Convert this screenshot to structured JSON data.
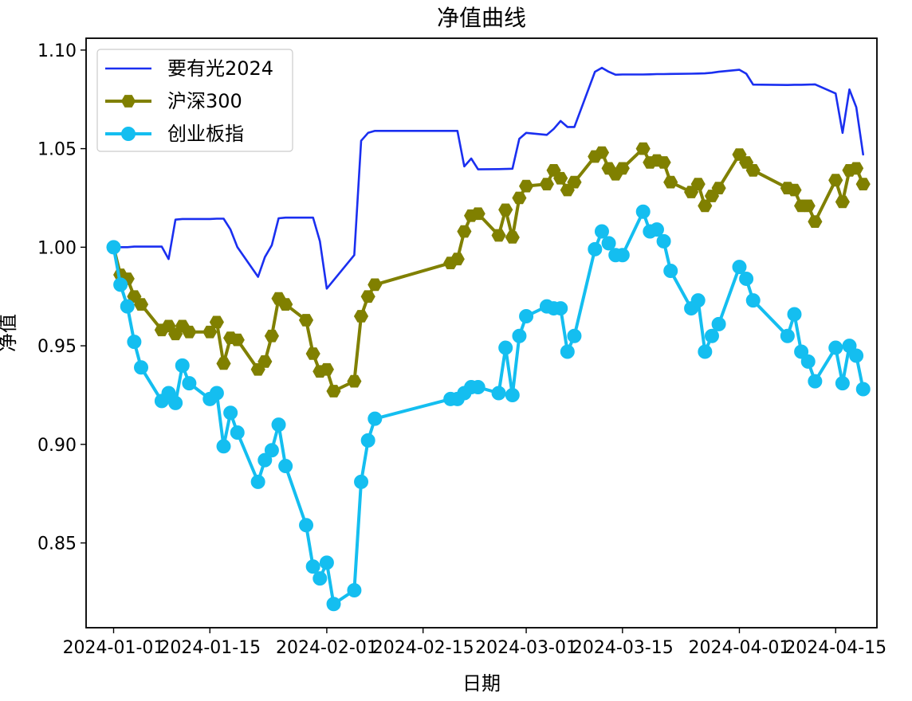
{
  "chart_data": {
    "type": "line",
    "title": "净值曲线",
    "xlabel": "日期",
    "ylabel": "净值",
    "xlim": [
      "2023-12-28",
      "2024-04-21"
    ],
    "ylim": [
      0.807,
      1.106
    ],
    "x_ticks": [
      "2024-01-01",
      "2024-01-15",
      "2024-02-01",
      "2024-02-15",
      "2024-03-01",
      "2024-03-15",
      "2024-04-01",
      "2024-04-15"
    ],
    "y_ticks": [
      0.85,
      0.9,
      0.95,
      1.0,
      1.05,
      1.1
    ],
    "y_tick_labels": [
      "0.85",
      "0.90",
      "0.95",
      "1.00",
      "1.05",
      "1.10"
    ],
    "legend_position": "top-left",
    "series": [
      {
        "name": "要有光2024",
        "color": "#1a2ff0",
        "marker": "none",
        "points": [
          [
            "2024-01-01",
            1.0
          ],
          [
            "2024-01-02",
            1.0
          ],
          [
            "2024-01-03",
            1.0
          ],
          [
            "2024-01-04",
            1.0003
          ],
          [
            "2024-01-05",
            1.0003
          ],
          [
            "2024-01-08",
            1.0003
          ],
          [
            "2024-01-09",
            0.994
          ],
          [
            "2024-01-10",
            1.014
          ],
          [
            "2024-01-11",
            1.0143
          ],
          [
            "2024-01-12",
            1.0143
          ],
          [
            "2024-01-15",
            1.0143
          ],
          [
            "2024-01-16",
            1.0145
          ],
          [
            "2024-01-17",
            1.0145
          ],
          [
            "2024-01-18",
            1.009
          ],
          [
            "2024-01-19",
            1.0
          ],
          [
            "2024-01-22",
            0.985
          ],
          [
            "2024-01-23",
            0.995
          ],
          [
            "2024-01-24",
            1.001
          ],
          [
            "2024-01-25",
            1.0147
          ],
          [
            "2024-01-26",
            1.015
          ],
          [
            "2024-01-29",
            1.015
          ],
          [
            "2024-01-30",
            1.015
          ],
          [
            "2024-01-31",
            1.003
          ],
          [
            "2024-02-01",
            0.979
          ],
          [
            "2024-02-05",
            0.996
          ],
          [
            "2024-02-06",
            1.054
          ],
          [
            "2024-02-07",
            1.058
          ],
          [
            "2024-02-08",
            1.059
          ],
          [
            "2024-02-19",
            1.059
          ],
          [
            "2024-02-20",
            1.059
          ],
          [
            "2024-02-21",
            1.041
          ],
          [
            "2024-02-22",
            1.045
          ],
          [
            "2024-02-23",
            1.0395
          ],
          [
            "2024-02-26",
            1.0396
          ],
          [
            "2024-02-27",
            1.0397
          ],
          [
            "2024-02-28",
            1.0398
          ],
          [
            "2024-02-29",
            1.055
          ],
          [
            "2024-03-01",
            1.058
          ],
          [
            "2024-03-04",
            1.057
          ],
          [
            "2024-03-05",
            1.06
          ],
          [
            "2024-03-06",
            1.064
          ],
          [
            "2024-03-07",
            1.061
          ],
          [
            "2024-03-08",
            1.061
          ],
          [
            "2024-03-11",
            1.089
          ],
          [
            "2024-03-12",
            1.091
          ],
          [
            "2024-03-13",
            1.089
          ],
          [
            "2024-03-14",
            1.0875
          ],
          [
            "2024-03-15",
            1.0876
          ],
          [
            "2024-03-18",
            1.0876
          ],
          [
            "2024-03-19",
            1.0877
          ],
          [
            "2024-03-20",
            1.0878
          ],
          [
            "2024-03-21",
            1.0878
          ],
          [
            "2024-03-22",
            1.0879
          ],
          [
            "2024-03-25",
            1.088
          ],
          [
            "2024-03-26",
            1.0881
          ],
          [
            "2024-03-27",
            1.0882
          ],
          [
            "2024-03-28",
            1.0885
          ],
          [
            "2024-03-29",
            1.089
          ],
          [
            "2024-04-01",
            1.09
          ],
          [
            "2024-04-02",
            1.088
          ],
          [
            "2024-04-03",
            1.0825
          ],
          [
            "2024-04-08",
            1.0823
          ],
          [
            "2024-04-09",
            1.0824
          ],
          [
            "2024-04-10",
            1.0824
          ],
          [
            "2024-04-11",
            1.0825
          ],
          [
            "2024-04-12",
            1.0826
          ],
          [
            "2024-04-15",
            1.078
          ],
          [
            "2024-04-16",
            1.058
          ],
          [
            "2024-04-17",
            1.08
          ],
          [
            "2024-04-18",
            1.071
          ],
          [
            "2024-04-19",
            1.047
          ]
        ]
      },
      {
        "name": "沪深300",
        "color": "#808000",
        "marker": "hexagon",
        "points": [
          [
            "2024-01-01",
            1.0
          ],
          [
            "2024-01-02",
            0.986
          ],
          [
            "2024-01-03",
            0.984
          ],
          [
            "2024-01-04",
            0.975
          ],
          [
            "2024-01-05",
            0.971
          ],
          [
            "2024-01-08",
            0.958
          ],
          [
            "2024-01-09",
            0.96
          ],
          [
            "2024-01-10",
            0.956
          ],
          [
            "2024-01-11",
            0.96
          ],
          [
            "2024-01-12",
            0.957
          ],
          [
            "2024-01-15",
            0.957
          ],
          [
            "2024-01-16",
            0.962
          ],
          [
            "2024-01-17",
            0.941
          ],
          [
            "2024-01-18",
            0.954
          ],
          [
            "2024-01-19",
            0.953
          ],
          [
            "2024-01-22",
            0.938
          ],
          [
            "2024-01-23",
            0.942
          ],
          [
            "2024-01-24",
            0.955
          ],
          [
            "2024-01-25",
            0.974
          ],
          [
            "2024-01-26",
            0.971
          ],
          [
            "2024-01-29",
            0.963
          ],
          [
            "2024-01-30",
            0.946
          ],
          [
            "2024-01-31",
            0.937
          ],
          [
            "2024-02-01",
            0.938
          ],
          [
            "2024-02-02",
            0.927
          ],
          [
            "2024-02-05",
            0.932
          ],
          [
            "2024-02-06",
            0.965
          ],
          [
            "2024-02-07",
            0.975
          ],
          [
            "2024-02-08",
            0.981
          ],
          [
            "2024-02-19",
            0.992
          ],
          [
            "2024-02-20",
            0.994
          ],
          [
            "2024-02-21",
            1.008
          ],
          [
            "2024-02-22",
            1.016
          ],
          [
            "2024-02-23",
            1.017
          ],
          [
            "2024-02-26",
            1.006
          ],
          [
            "2024-02-27",
            1.019
          ],
          [
            "2024-02-28",
            1.005
          ],
          [
            "2024-02-29",
            1.025
          ],
          [
            "2024-03-01",
            1.031
          ],
          [
            "2024-03-04",
            1.032
          ],
          [
            "2024-03-05",
            1.039
          ],
          [
            "2024-03-06",
            1.035
          ],
          [
            "2024-03-07",
            1.029
          ],
          [
            "2024-03-08",
            1.033
          ],
          [
            "2024-03-11",
            1.046
          ],
          [
            "2024-03-12",
            1.048
          ],
          [
            "2024-03-13",
            1.04
          ],
          [
            "2024-03-14",
            1.037
          ],
          [
            "2024-03-15",
            1.04
          ],
          [
            "2024-03-18",
            1.05
          ],
          [
            "2024-03-19",
            1.043
          ],
          [
            "2024-03-20",
            1.044
          ],
          [
            "2024-03-21",
            1.043
          ],
          [
            "2024-03-22",
            1.033
          ],
          [
            "2024-03-25",
            1.028
          ],
          [
            "2024-03-26",
            1.032
          ],
          [
            "2024-03-27",
            1.021
          ],
          [
            "2024-03-28",
            1.026
          ],
          [
            "2024-03-29",
            1.03
          ],
          [
            "2024-04-01",
            1.047
          ],
          [
            "2024-04-02",
            1.043
          ],
          [
            "2024-04-03",
            1.039
          ],
          [
            "2024-04-08",
            1.03
          ],
          [
            "2024-04-09",
            1.029
          ],
          [
            "2024-04-10",
            1.021
          ],
          [
            "2024-04-11",
            1.021
          ],
          [
            "2024-04-12",
            1.013
          ],
          [
            "2024-04-15",
            1.034
          ],
          [
            "2024-04-16",
            1.023
          ],
          [
            "2024-04-17",
            1.039
          ],
          [
            "2024-04-18",
            1.04
          ],
          [
            "2024-04-19",
            1.032
          ]
        ]
      },
      {
        "name": "创业板指",
        "color": "#14bef0",
        "marker": "circle",
        "points": [
          [
            "2024-01-01",
            1.0
          ],
          [
            "2024-01-02",
            0.981
          ],
          [
            "2024-01-03",
            0.97
          ],
          [
            "2024-01-04",
            0.952
          ],
          [
            "2024-01-05",
            0.939
          ],
          [
            "2024-01-08",
            0.922
          ],
          [
            "2024-01-09",
            0.926
          ],
          [
            "2024-01-10",
            0.921
          ],
          [
            "2024-01-11",
            0.94
          ],
          [
            "2024-01-12",
            0.931
          ],
          [
            "2024-01-15",
            0.923
          ],
          [
            "2024-01-16",
            0.926
          ],
          [
            "2024-01-17",
            0.899
          ],
          [
            "2024-01-18",
            0.916
          ],
          [
            "2024-01-19",
            0.906
          ],
          [
            "2024-01-22",
            0.881
          ],
          [
            "2024-01-23",
            0.892
          ],
          [
            "2024-01-24",
            0.897
          ],
          [
            "2024-01-25",
            0.91
          ],
          [
            "2024-01-26",
            0.889
          ],
          [
            "2024-01-29",
            0.859
          ],
          [
            "2024-01-30",
            0.838
          ],
          [
            "2024-01-31",
            0.832
          ],
          [
            "2024-02-01",
            0.84
          ],
          [
            "2024-02-02",
            0.819
          ],
          [
            "2024-02-05",
            0.826
          ],
          [
            "2024-02-06",
            0.881
          ],
          [
            "2024-02-07",
            0.902
          ],
          [
            "2024-02-08",
            0.913
          ],
          [
            "2024-02-19",
            0.923
          ],
          [
            "2024-02-20",
            0.923
          ],
          [
            "2024-02-21",
            0.926
          ],
          [
            "2024-02-22",
            0.929
          ],
          [
            "2024-02-23",
            0.929
          ],
          [
            "2024-02-26",
            0.926
          ],
          [
            "2024-02-27",
            0.949
          ],
          [
            "2024-02-28",
            0.925
          ],
          [
            "2024-02-29",
            0.955
          ],
          [
            "2024-03-01",
            0.965
          ],
          [
            "2024-03-04",
            0.97
          ],
          [
            "2024-03-05",
            0.969
          ],
          [
            "2024-03-06",
            0.969
          ],
          [
            "2024-03-07",
            0.947
          ],
          [
            "2024-03-08",
            0.955
          ],
          [
            "2024-03-11",
            0.999
          ],
          [
            "2024-03-12",
            1.008
          ],
          [
            "2024-03-13",
            1.002
          ],
          [
            "2024-03-14",
            0.996
          ],
          [
            "2024-03-15",
            0.996
          ],
          [
            "2024-03-18",
            1.018
          ],
          [
            "2024-03-19",
            1.008
          ],
          [
            "2024-03-20",
            1.009
          ],
          [
            "2024-03-21",
            1.003
          ],
          [
            "2024-03-22",
            0.988
          ],
          [
            "2024-03-25",
            0.969
          ],
          [
            "2024-03-26",
            0.973
          ],
          [
            "2024-03-27",
            0.947
          ],
          [
            "2024-03-28",
            0.955
          ],
          [
            "2024-03-29",
            0.961
          ],
          [
            "2024-04-01",
            0.99
          ],
          [
            "2024-04-02",
            0.984
          ],
          [
            "2024-04-03",
            0.973
          ],
          [
            "2024-04-08",
            0.955
          ],
          [
            "2024-04-09",
            0.966
          ],
          [
            "2024-04-10",
            0.947
          ],
          [
            "2024-04-11",
            0.942
          ],
          [
            "2024-04-12",
            0.932
          ],
          [
            "2024-04-15",
            0.949
          ],
          [
            "2024-04-16",
            0.931
          ],
          [
            "2024-04-17",
            0.95
          ],
          [
            "2024-04-18",
            0.945
          ],
          [
            "2024-04-19",
            0.928
          ]
        ]
      }
    ]
  }
}
